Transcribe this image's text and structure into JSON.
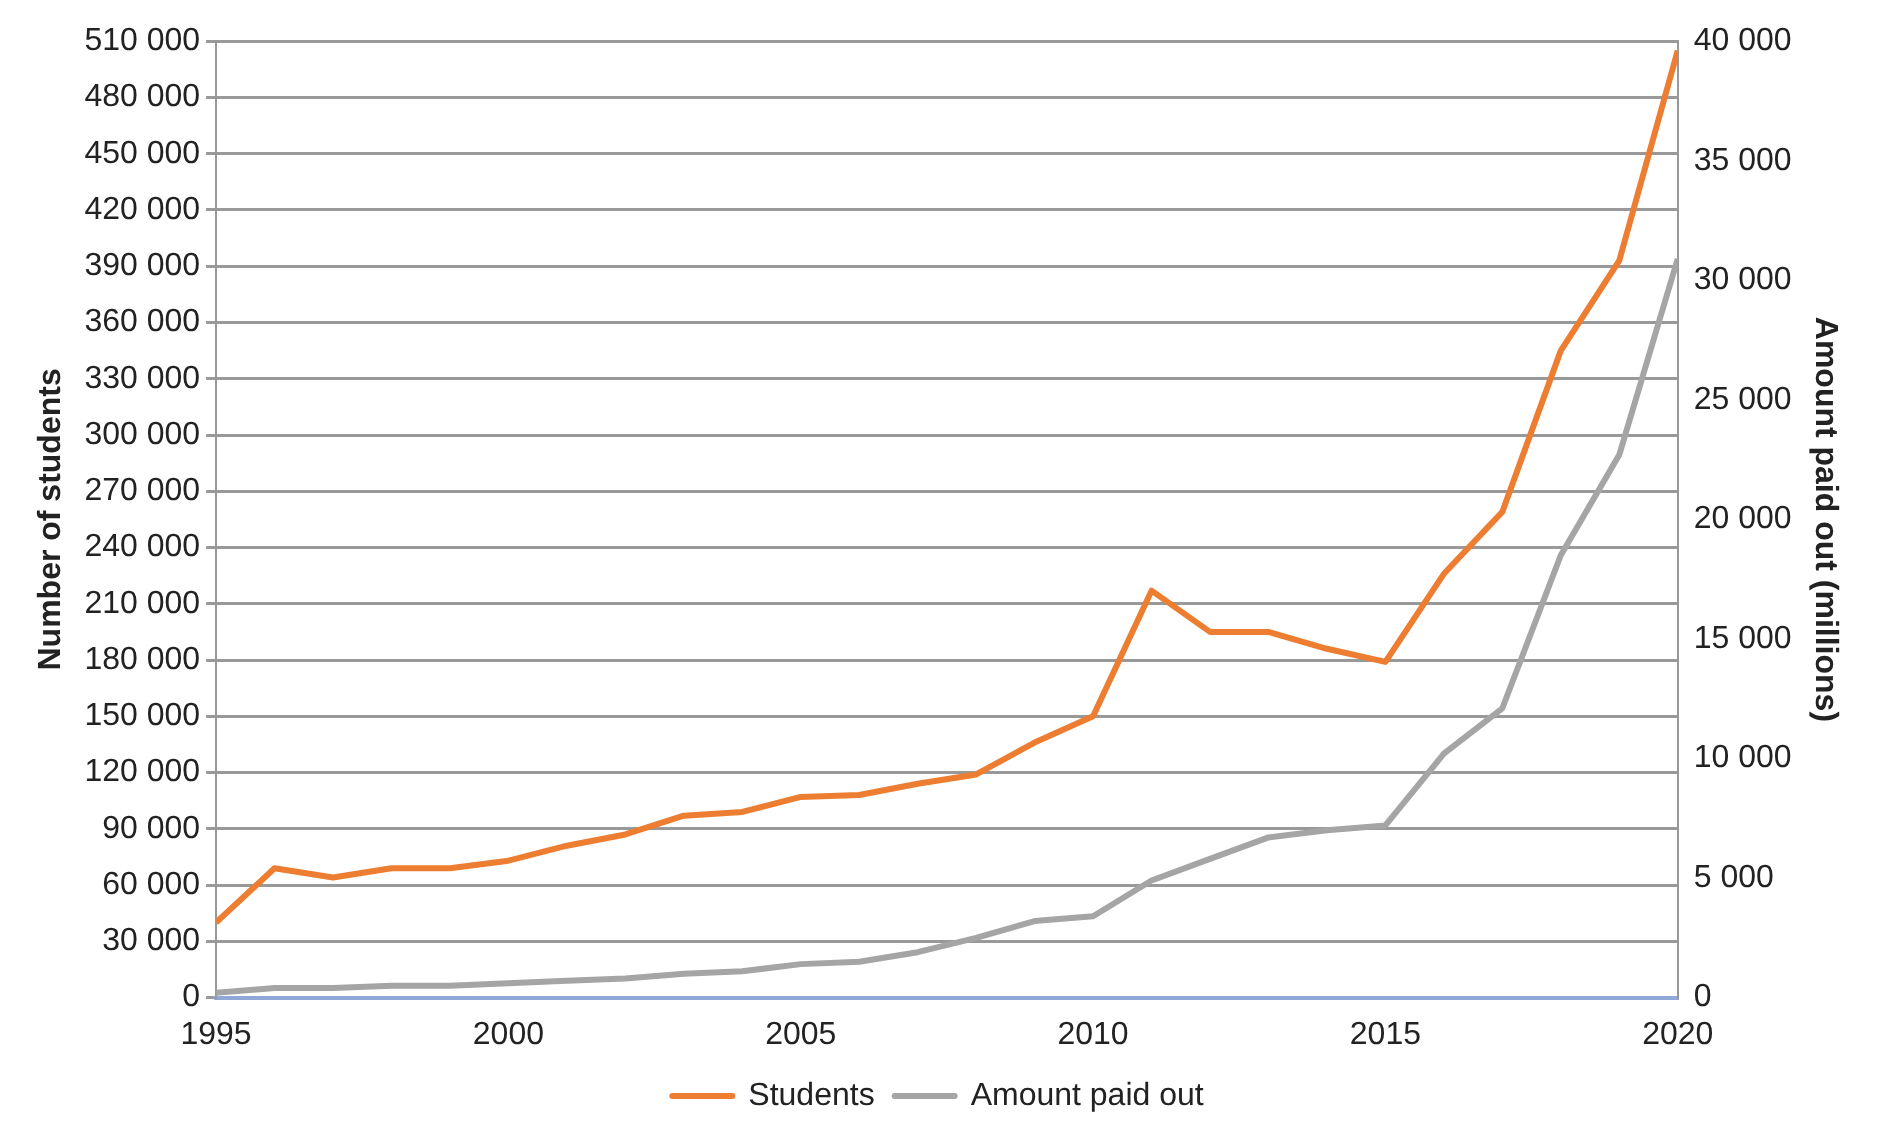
{
  "chart_data": {
    "type": "line",
    "ylabel": "Number of students",
    "y2label": "Amount paid out (millions)",
    "x": [
      1995,
      1996,
      1997,
      1998,
      1999,
      2000,
      2001,
      2002,
      2003,
      2004,
      2005,
      2006,
      2007,
      2008,
      2009,
      2010,
      2011,
      2012,
      2013,
      2014,
      2015,
      2016,
      2017,
      2018,
      2019,
      2020
    ],
    "xlim": [
      1995,
      2020
    ],
    "xticks": [
      1995,
      2000,
      2005,
      2010,
      2015,
      2020
    ],
    "ylim": [
      0,
      510000
    ],
    "yticks": [
      0,
      {
        "value": 30000,
        "label": "30 000"
      },
      {
        "value": 60000,
        "label": "60 000"
      },
      {
        "value": 90000,
        "label": "90 000"
      },
      {
        "value": 120000,
        "label": "120 000"
      },
      {
        "value": 150000,
        "label": "150 000"
      },
      {
        "value": 180000,
        "label": "180 000"
      },
      {
        "value": 210000,
        "label": "210 000"
      },
      {
        "value": 240000,
        "label": "240 000"
      },
      {
        "value": 270000,
        "label": "270 000"
      },
      {
        "value": 300000,
        "label": "300 000"
      },
      {
        "value": 330000,
        "label": "330 000"
      },
      {
        "value": 360000,
        "label": "360 000"
      },
      {
        "value": 390000,
        "label": "390 000"
      },
      {
        "value": 420000,
        "label": "420 000"
      },
      {
        "value": 450000,
        "label": "450 000"
      },
      {
        "value": 480000,
        "label": "480 000"
      },
      {
        "value": 510000,
        "label": "510 000"
      }
    ],
    "y2lim": [
      0,
      40000
    ],
    "y2ticks": [
      0,
      {
        "value": 5000,
        "label": "5 000"
      },
      {
        "value": 10000,
        "label": "10 000"
      },
      {
        "value": 15000,
        "label": "15 000"
      },
      {
        "value": 20000,
        "label": "20 000"
      },
      {
        "value": 25000,
        "label": "25 000"
      },
      {
        "value": 30000,
        "label": "30 000"
      },
      {
        "value": 35000,
        "label": "35 000"
      },
      {
        "value": 40000,
        "label": "40 000"
      }
    ],
    "grid": "y",
    "legend": "bottom",
    "marker": "none",
    "line_style": "solid",
    "series": [
      {
        "name": "Students",
        "color": "#ed7d31",
        "values": [
          40000,
          69000,
          64000,
          69000,
          69000,
          73000,
          81000,
          87000,
          97000,
          99000,
          107000,
          108000,
          114000,
          119000,
          136000,
          150000,
          217000,
          195000,
          195000,
          186000,
          179000,
          226000,
          259000,
          345000,
          393000,
          505000
        ]
      },
      {
        "name": "Amount paid out",
        "color": "#a5a5a5",
        "axis": "y2",
        "values": [
          200,
          400,
          400,
          500,
          500,
          600,
          700,
          800,
          1000,
          1100,
          1400,
          1500,
          1900,
          2500,
          3200,
          3400,
          4900,
          5800,
          6700,
          7000,
          7200,
          10200,
          12100,
          18500,
          22700,
          30900
        ]
      }
    ]
  }
}
